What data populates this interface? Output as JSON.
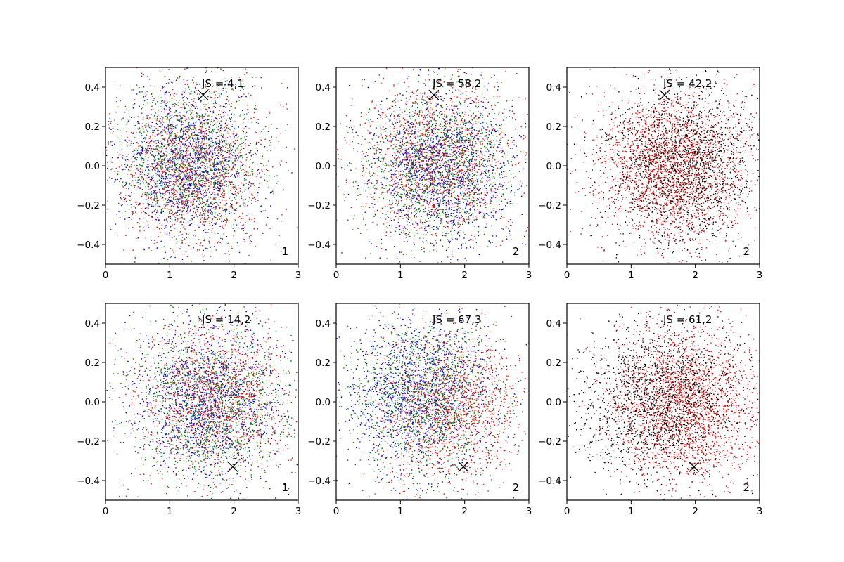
{
  "figure": {
    "background": "#ffffff"
  },
  "series_colors": {
    "blue": "#0000ff",
    "green": "#008000",
    "red": "#ff0000",
    "black": "#000000"
  },
  "chart_data": [
    {
      "type": "scatter",
      "title": "",
      "annotation": "JS = 4,1",
      "corner_label": "1",
      "xlabel": "",
      "ylabel": "",
      "xlim": [
        0,
        3
      ],
      "ylim": [
        -0.5,
        0.5
      ],
      "xticks": [
        0,
        1,
        2,
        3
      ],
      "xtick_labels": [
        "0",
        "1",
        "2",
        "3"
      ],
      "yticks": [
        -0.4,
        -0.2,
        0.0,
        0.2,
        0.4
      ],
      "ytick_labels": [
        "−0.4",
        "−0.2",
        "0.0",
        "0.2",
        "0.4"
      ],
      "grid": false,
      "marker": {
        "x": 1.52,
        "y": 0.36,
        "symbol": "x"
      },
      "cloud": {
        "center_x": 1.3,
        "center_y": 0.0,
        "spread_x": 0.55,
        "spread_y": 0.2,
        "points_per_series": 1400,
        "seed": 11
      },
      "series": [
        {
          "color_key": "blue",
          "shift_x": -0.05,
          "shift_y": 0.0
        },
        {
          "color_key": "green",
          "shift_x": 0.0,
          "shift_y": 0.02
        },
        {
          "color_key": "red",
          "shift_x": 0.05,
          "shift_y": -0.02
        }
      ]
    },
    {
      "type": "scatter",
      "title": "",
      "annotation": "JS = 58,2",
      "corner_label": "2",
      "xlabel": "",
      "ylabel": "",
      "xlim": [
        0,
        3
      ],
      "ylim": [
        -0.5,
        0.5
      ],
      "xticks": [
        0,
        1,
        2,
        3
      ],
      "xtick_labels": [
        "0",
        "1",
        "2",
        "3"
      ],
      "yticks": [
        -0.4,
        -0.2,
        0.0,
        0.2,
        0.4
      ],
      "ytick_labels": [
        "−0.4",
        "−0.2",
        "0.0",
        "0.2",
        "0.4"
      ],
      "grid": false,
      "marker": {
        "x": 1.52,
        "y": 0.36,
        "symbol": "x"
      },
      "cloud": {
        "center_x": 1.6,
        "center_y": 0.0,
        "spread_x": 0.6,
        "spread_y": 0.2,
        "points_per_series": 1400,
        "seed": 23
      },
      "series": [
        {
          "color_key": "blue",
          "shift_x": 0.05,
          "shift_y": -0.02
        },
        {
          "color_key": "green",
          "shift_x": 0.0,
          "shift_y": 0.0
        },
        {
          "color_key": "red",
          "shift_x": -0.05,
          "shift_y": 0.02
        }
      ]
    },
    {
      "type": "scatter",
      "title": "",
      "annotation": "JS = 42,2",
      "corner_label": "2",
      "xlabel": "",
      "ylabel": "",
      "xlim": [
        0,
        3
      ],
      "ylim": [
        -0.5,
        0.5
      ],
      "xticks": [
        0,
        1,
        2,
        3
      ],
      "xtick_labels": [
        "0",
        "1",
        "2",
        "3"
      ],
      "yticks": [
        -0.4,
        -0.2,
        0.0,
        0.2,
        0.4
      ],
      "ytick_labels": [
        "−0.4",
        "−0.2",
        "0.0",
        "0.2",
        "0.4"
      ],
      "grid": false,
      "marker": {
        "x": 1.52,
        "y": 0.36,
        "symbol": "x"
      },
      "cloud": {
        "center_x": 1.65,
        "center_y": 0.0,
        "spread_x": 0.6,
        "spread_y": 0.2,
        "points_per_series": 2000,
        "seed": 37
      },
      "series": [
        {
          "color_key": "black",
          "shift_x": 0.15,
          "shift_y": 0.0
        },
        {
          "color_key": "red",
          "shift_x": -0.05,
          "shift_y": 0.0
        }
      ]
    },
    {
      "type": "scatter",
      "title": "",
      "annotation": "JS = 14,2",
      "corner_label": "1",
      "xlabel": "",
      "ylabel": "",
      "xlim": [
        0,
        3
      ],
      "ylim": [
        -0.5,
        0.5
      ],
      "xticks": [
        0,
        1,
        2,
        3
      ],
      "xtick_labels": [
        "0",
        "1",
        "2",
        "3"
      ],
      "yticks": [
        -0.4,
        -0.2,
        0.0,
        0.2,
        0.4
      ],
      "ytick_labels": [
        "−0.4",
        "−0.2",
        "0.0",
        "0.2",
        "0.4"
      ],
      "grid": false,
      "marker": {
        "x": 1.98,
        "y": -0.33,
        "symbol": "x"
      },
      "cloud": {
        "center_x": 1.65,
        "center_y": 0.0,
        "spread_x": 0.6,
        "spread_y": 0.2,
        "points_per_series": 1400,
        "seed": 41
      },
      "series": [
        {
          "color_key": "blue",
          "shift_x": -0.05,
          "shift_y": 0.0
        },
        {
          "color_key": "green",
          "shift_x": 0.0,
          "shift_y": -0.02
        },
        {
          "color_key": "red",
          "shift_x": 0.05,
          "shift_y": 0.02
        }
      ]
    },
    {
      "type": "scatter",
      "title": "",
      "annotation": "JS = 67,3",
      "corner_label": "2",
      "xlabel": "",
      "ylabel": "",
      "xlim": [
        0,
        3
      ],
      "ylim": [
        -0.5,
        0.5
      ],
      "xticks": [
        0,
        1,
        2,
        3
      ],
      "xtick_labels": [
        "0",
        "1",
        "2",
        "3"
      ],
      "yticks": [
        -0.4,
        -0.2,
        0.0,
        0.2,
        0.4
      ],
      "ytick_labels": [
        "−0.4",
        "−0.2",
        "0.0",
        "0.2",
        "0.4"
      ],
      "grid": false,
      "marker": {
        "x": 1.98,
        "y": -0.33,
        "symbol": "x"
      },
      "cloud": {
        "center_x": 1.55,
        "center_y": 0.0,
        "spread_x": 0.6,
        "spread_y": 0.2,
        "points_per_series": 1400,
        "seed": 53
      },
      "series": [
        {
          "color_key": "blue",
          "shift_x": -0.25,
          "shift_y": 0.03
        },
        {
          "color_key": "green",
          "shift_x": -0.1,
          "shift_y": 0.0
        },
        {
          "color_key": "red",
          "shift_x": 0.25,
          "shift_y": -0.03
        }
      ]
    },
    {
      "type": "scatter",
      "title": "",
      "annotation": "JS = 61,2",
      "corner_label": "2",
      "xlabel": "",
      "ylabel": "",
      "xlim": [
        0,
        3
      ],
      "ylim": [
        -0.5,
        0.5
      ],
      "xticks": [
        0,
        1,
        2,
        3
      ],
      "xtick_labels": [
        "0",
        "1",
        "2",
        "3"
      ],
      "yticks": [
        -0.4,
        -0.2,
        0.0,
        0.2,
        0.4
      ],
      "ytick_labels": [
        "−0.4",
        "−0.2",
        "0.0",
        "0.2",
        "0.4"
      ],
      "grid": false,
      "marker": {
        "x": 1.98,
        "y": -0.33,
        "symbol": "x"
      },
      "cloud": {
        "center_x": 1.7,
        "center_y": 0.0,
        "spread_x": 0.6,
        "spread_y": 0.2,
        "points_per_series": 2000,
        "seed": 67
      },
      "series": [
        {
          "color_key": "black",
          "shift_x": -0.2,
          "shift_y": 0.0
        },
        {
          "color_key": "red",
          "shift_x": 0.15,
          "shift_y": -0.02
        }
      ]
    }
  ]
}
